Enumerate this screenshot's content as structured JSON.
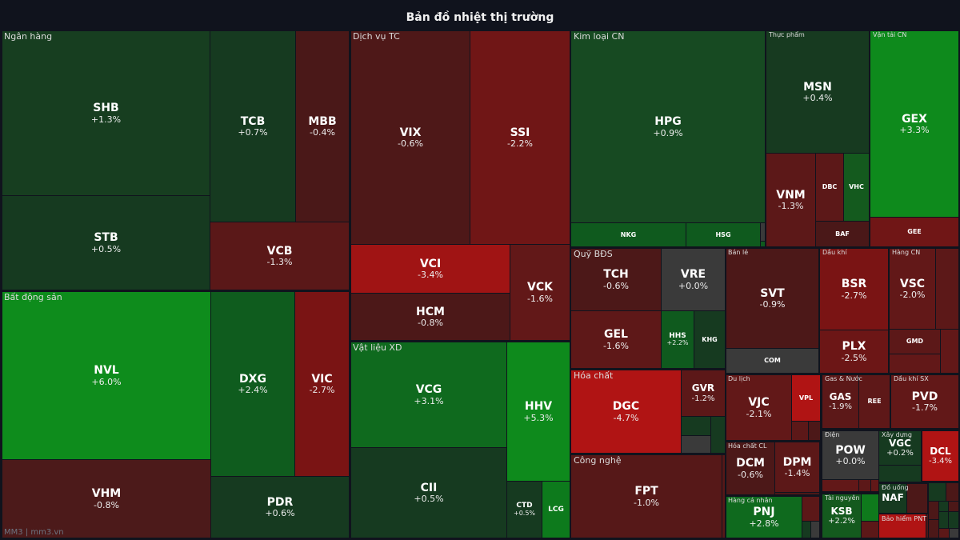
{
  "title": "Bản đồ nhiệt thị trường",
  "footer": "MM3 | mm3.vn",
  "chart_data": {
    "type": "treemap",
    "title": "Bản đồ nhiệt thị trường",
    "color_scale": {
      "up_strong": "#0e8c1c",
      "up": "#0f5c1e",
      "up_weak": "#163a20",
      "flat": "#3a3a3a",
      "down_weak": "#4c1818",
      "down": "#621818",
      "down_strong": "#b01414"
    },
    "sectors": [
      {
        "name": "Ngân hàng",
        "tiles": [
          {
            "ticker": "SHB",
            "change": "+1.3%",
            "color": "#173e20"
          },
          {
            "ticker": "STB",
            "change": "+0.5%",
            "color": "#163a20"
          },
          {
            "ticker": "TCB",
            "change": "+0.7%",
            "color": "#163a20"
          },
          {
            "ticker": "MBB",
            "change": "-0.4%",
            "color": "#4a1818"
          },
          {
            "ticker": "VCB",
            "change": "-1.3%",
            "color": "#5a1818"
          }
        ]
      },
      {
        "name": "Bất động sản",
        "tiles": [
          {
            "ticker": "NVL",
            "change": "+6.0%",
            "color": "#0e8c1c"
          },
          {
            "ticker": "VHM",
            "change": "-0.8%",
            "color": "#4c1a1a"
          },
          {
            "ticker": "DXG",
            "change": "+2.4%",
            "color": "#0f5c1e"
          },
          {
            "ticker": "VIC",
            "change": "-2.7%",
            "color": "#7a1414"
          },
          {
            "ticker": "PDR",
            "change": "+0.6%",
            "color": "#163a20"
          }
        ]
      },
      {
        "name": "Dịch vụ TC",
        "tiles": [
          {
            "ticker": "VIX",
            "change": "-0.6%",
            "color": "#4e1818"
          },
          {
            "ticker": "SSI",
            "change": "-2.2%",
            "color": "#701616"
          },
          {
            "ticker": "VCI",
            "change": "-3.4%",
            "color": "#a01414"
          },
          {
            "ticker": "HCM",
            "change": "-0.8%",
            "color": "#4c1818"
          },
          {
            "ticker": "VCK",
            "change": "-1.6%",
            "color": "#621818"
          }
        ]
      },
      {
        "name": "Vật liệu XD",
        "tiles": [
          {
            "ticker": "VCG",
            "change": "+3.1%",
            "color": "#0f6a1e"
          },
          {
            "ticker": "CII",
            "change": "+0.5%",
            "color": "#163a20"
          },
          {
            "ticker": "HHV",
            "change": "+5.3%",
            "color": "#0e8a1c"
          },
          {
            "ticker": "CTD",
            "change": "+0.5%",
            "color": "#163a20"
          },
          {
            "ticker": "LCG",
            "change": "",
            "color": "#0d7a1c"
          }
        ]
      },
      {
        "name": "Kim loại CN",
        "tiles": [
          {
            "ticker": "HPG",
            "change": "+0.9%",
            "color": "#174a22"
          },
          {
            "ticker": "NKG",
            "change": "",
            "color": "#0f5a1e"
          },
          {
            "ticker": "HSG",
            "change": "",
            "color": "#0f5a1e"
          }
        ]
      },
      {
        "name": "Thực phẩm",
        "tiles": [
          {
            "ticker": "MSN",
            "change": "+0.4%",
            "color": "#173a20"
          },
          {
            "ticker": "VNM",
            "change": "-1.3%",
            "color": "#5c1818"
          },
          {
            "ticker": "DBC",
            "change": "",
            "color": "#5c1818"
          },
          {
            "ticker": "VHC",
            "change": "",
            "color": "#145a1e"
          },
          {
            "ticker": "BAF",
            "change": "",
            "color": "#4a1818"
          }
        ]
      },
      {
        "name": "Vận tải CN",
        "tiles": [
          {
            "ticker": "GEX",
            "change": "+3.3%",
            "color": "#0e8a1c"
          },
          {
            "ticker": "GEE",
            "change": "",
            "color": "#701616"
          }
        ]
      },
      {
        "name": "Quỹ BĐS",
        "tiles": [
          {
            "ticker": "TCH",
            "change": "-0.6%",
            "color": "#4c1818"
          },
          {
            "ticker": "VRE",
            "change": "+0.0%",
            "color": "#3a3a3a"
          },
          {
            "ticker": "GEL",
            "change": "-1.6%",
            "color": "#5e1818"
          },
          {
            "ticker": "HHS",
            "change": "+2.2%",
            "color": "#0f5a1e"
          },
          {
            "ticker": "KHG",
            "change": "",
            "color": "#163a20"
          }
        ]
      },
      {
        "name": "Hóa chất",
        "tiles": [
          {
            "ticker": "DGC",
            "change": "-4.7%",
            "color": "#b01414"
          },
          {
            "ticker": "GVR",
            "change": "-1.2%",
            "color": "#5c1818"
          }
        ]
      },
      {
        "name": "Công nghệ",
        "tiles": [
          {
            "ticker": "FPT",
            "change": "-1.0%",
            "color": "#561818"
          }
        ]
      },
      {
        "name": "Bán lẻ",
        "tiles": [
          {
            "ticker": "SVT",
            "change": "-0.9%",
            "color": "#4c1818"
          },
          {
            "ticker": "COM",
            "change": "",
            "color": "#3a3a3a"
          }
        ]
      },
      {
        "name": "Dầu khí",
        "tiles": [
          {
            "ticker": "BSR",
            "change": "-2.7%",
            "color": "#7a1414"
          },
          {
            "ticker": "PLX",
            "change": "-2.5%",
            "color": "#6c1616"
          }
        ]
      },
      {
        "name": "Hàng CN",
        "tiles": [
          {
            "ticker": "VSC",
            "change": "-2.0%",
            "color": "#621818"
          },
          {
            "ticker": "GMD",
            "change": "",
            "color": "#5c1818"
          }
        ]
      },
      {
        "name": "Du lịch",
        "tiles": [
          {
            "ticker": "VJC",
            "change": "-2.1%",
            "color": "#621818"
          },
          {
            "ticker": "VPL",
            "change": "",
            "color": "#b01414"
          }
        ]
      },
      {
        "name": "Gas & Nước",
        "tiles": [
          {
            "ticker": "GAS",
            "change": "-1.9%",
            "color": "#5c1818"
          },
          {
            "ticker": "REE",
            "change": "",
            "color": "#5e1818"
          }
        ]
      },
      {
        "name": "Dầu khí SX",
        "tiles": [
          {
            "ticker": "PVD",
            "change": "-1.7%",
            "color": "#621818"
          }
        ]
      },
      {
        "name": "Hóa chất CL",
        "tiles": [
          {
            "ticker": "DCM",
            "change": "-0.6%",
            "color": "#4c1818"
          },
          {
            "ticker": "DPM",
            "change": "-1.4%",
            "color": "#5c1818"
          }
        ]
      },
      {
        "name": "Điện",
        "tiles": [
          {
            "ticker": "POW",
            "change": "+0.0%",
            "color": "#3a3a3a"
          }
        ]
      },
      {
        "name": "Xây dựng",
        "tiles": [
          {
            "ticker": "VGC",
            "change": "+0.2%",
            "color": "#163a20"
          },
          {
            "ticker": "DCL",
            "change": "-3.4%",
            "color": "#b01414"
          }
        ]
      },
      {
        "name": "Hàng cá nhân",
        "tiles": [
          {
            "ticker": "PNJ",
            "change": "+2.8%",
            "color": "#0f6a1e"
          }
        ]
      },
      {
        "name": "Tài nguyên",
        "tiles": [
          {
            "ticker": "KSB",
            "change": "+2.2%",
            "color": "#145a1e"
          }
        ]
      },
      {
        "name": "Đồ uống",
        "tiles": [
          {
            "ticker": "NAF",
            "change": "",
            "color": "#163a20"
          }
        ]
      },
      {
        "name": "Bảo hiểm PNT",
        "tiles": []
      }
    ]
  }
}
